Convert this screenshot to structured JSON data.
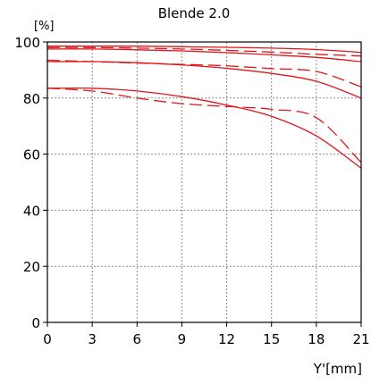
{
  "chart_data": {
    "type": "line",
    "title": "Blende 2.0",
    "ylabel": "[%]",
    "xlabel": "Y'[mm]",
    "xlim": [
      0,
      21
    ],
    "ylim": [
      0,
      100
    ],
    "xticks": [
      0,
      3,
      6,
      9,
      12,
      15,
      18,
      21
    ],
    "yticks": [
      0,
      20,
      40,
      60,
      80,
      100
    ],
    "grid": true,
    "color": "#e0161a",
    "series": [
      {
        "style": "solid",
        "x": [
          0,
          3,
          6,
          9,
          12,
          15,
          18,
          21
        ],
        "y": [
          98.5,
          98.5,
          98.5,
          98.3,
          98.1,
          97.8,
          97.3,
          96.3
        ]
      },
      {
        "style": "dashed",
        "x": [
          0,
          3,
          6,
          9,
          12,
          15,
          18,
          21
        ],
        "y": [
          98.0,
          98.0,
          97.8,
          97.5,
          97.0,
          96.4,
          95.6,
          95.0
        ]
      },
      {
        "style": "solid",
        "x": [
          0,
          3,
          6,
          9,
          12,
          15,
          18,
          21
        ],
        "y": [
          97.5,
          97.5,
          97.2,
          96.8,
          96.2,
          95.4,
          94.5,
          93.0
        ]
      },
      {
        "style": "dashed",
        "x": [
          0,
          3,
          6,
          9,
          12,
          15,
          18,
          21
        ],
        "y": [
          93.5,
          93.0,
          92.5,
          92.0,
          91.5,
          90.5,
          89.5,
          84.0
        ]
      },
      {
        "style": "solid",
        "x": [
          0,
          3,
          6,
          9,
          12,
          15,
          18,
          21
        ],
        "y": [
          93.0,
          93.0,
          92.6,
          91.8,
          90.6,
          88.8,
          86.0,
          80.0
        ]
      },
      {
        "style": "solid",
        "x": [
          0,
          3,
          6,
          9,
          12,
          15,
          18,
          21
        ],
        "y": [
          83.5,
          83.5,
          82.5,
          80.5,
          77.5,
          73.5,
          66.5,
          55.0
        ]
      },
      {
        "style": "dashed",
        "x": [
          0,
          3,
          6,
          9,
          12,
          15,
          18,
          21
        ],
        "y": [
          83.5,
          82.5,
          80.0,
          78.0,
          77.0,
          76.0,
          73.0,
          57.0
        ]
      }
    ]
  }
}
